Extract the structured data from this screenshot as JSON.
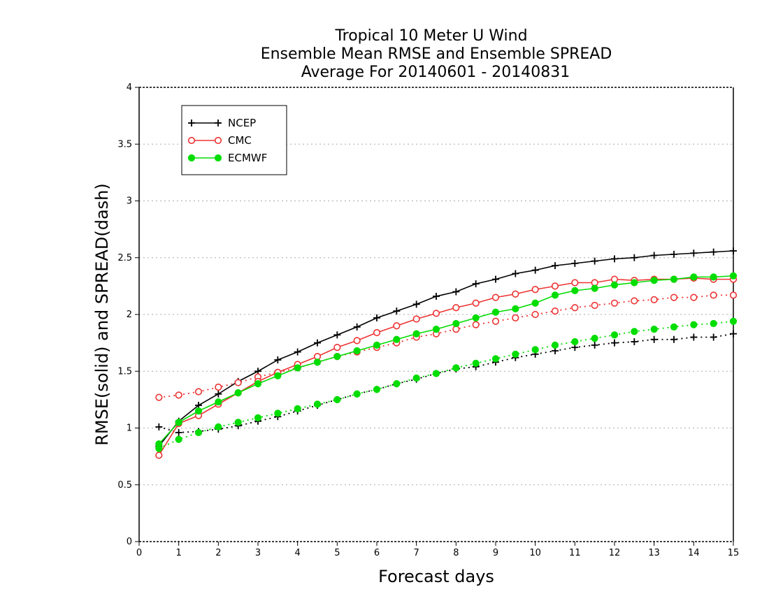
{
  "chart_data": {
    "type": "line",
    "title": [
      "Tropical 10 Meter U Wind",
      "Ensemble Mean RMSE and Ensemble SPREAD",
      "Average For 20140601 - 20140831"
    ],
    "xlabel": "Forecast days",
    "ylabel": "RMSE(solid) and SPREAD(dash)",
    "xlim": [
      0,
      15
    ],
    "ylim": [
      0,
      4
    ],
    "xticks": [
      "0",
      "1",
      "2",
      "3",
      "4",
      "5",
      "6",
      "7",
      "8",
      "9",
      "10",
      "11",
      "12",
      "13",
      "14",
      "15"
    ],
    "yticks": [
      "0",
      "0.5",
      "1",
      "1.5",
      "2",
      "2.5",
      "3",
      "3.5",
      "4"
    ],
    "grid": true,
    "legend_position": "top-left",
    "x": [
      0.5,
      1,
      1.5,
      2,
      2.5,
      3,
      3.5,
      4,
      4.5,
      5,
      5.5,
      6,
      6.5,
      7,
      7.5,
      8,
      8.5,
      9,
      9.5,
      10,
      10.5,
      11,
      11.5,
      12,
      12.5,
      13,
      13.5,
      14,
      14.5,
      15
    ],
    "series": [
      {
        "name": "NCEP",
        "color": "#000000",
        "marker": "plus",
        "rmse": [
          0.84,
          1.06,
          1.2,
          1.3,
          1.41,
          1.5,
          1.6,
          1.67,
          1.75,
          1.82,
          1.89,
          1.97,
          2.03,
          2.09,
          2.16,
          2.2,
          2.27,
          2.31,
          2.36,
          2.39,
          2.43,
          2.45,
          2.47,
          2.49,
          2.5,
          2.52,
          2.53,
          2.54,
          2.55,
          2.56
        ],
        "spread": [
          1.01,
          0.96,
          0.97,
          0.99,
          1.02,
          1.06,
          1.1,
          1.15,
          1.2,
          1.25,
          1.3,
          1.34,
          1.39,
          1.43,
          1.48,
          1.52,
          1.54,
          1.58,
          1.62,
          1.65,
          1.68,
          1.71,
          1.73,
          1.75,
          1.76,
          1.78,
          1.78,
          1.8,
          1.8,
          1.83
        ]
      },
      {
        "name": "CMC",
        "color": "#ee3333",
        "marker": "open-circle",
        "rmse": [
          0.76,
          1.04,
          1.11,
          1.21,
          1.31,
          1.41,
          1.49,
          1.56,
          1.63,
          1.71,
          1.77,
          1.84,
          1.9,
          1.96,
          2.01,
          2.06,
          2.1,
          2.15,
          2.18,
          2.22,
          2.25,
          2.28,
          2.28,
          2.31,
          2.3,
          2.31,
          2.31,
          2.32,
          2.31,
          2.31
        ],
        "spread": [
          1.27,
          1.29,
          1.32,
          1.36,
          1.4,
          1.45,
          1.49,
          1.53,
          1.58,
          1.63,
          1.67,
          1.71,
          1.75,
          1.8,
          1.83,
          1.87,
          1.91,
          1.94,
          1.97,
          2.0,
          2.03,
          2.06,
          2.08,
          2.1,
          2.12,
          2.13,
          2.15,
          2.15,
          2.17,
          2.17
        ]
      },
      {
        "name": "ECMWF",
        "color": "#00dd00",
        "marker": "filled-circle",
        "rmse": [
          0.86,
          1.05,
          1.15,
          1.23,
          1.31,
          1.39,
          1.46,
          1.53,
          1.58,
          1.63,
          1.68,
          1.73,
          1.78,
          1.83,
          1.87,
          1.92,
          1.97,
          2.02,
          2.05,
          2.1,
          2.17,
          2.21,
          2.23,
          2.26,
          2.28,
          2.3,
          2.31,
          2.33,
          2.33,
          2.34
        ],
        "spread": [
          0.82,
          0.9,
          0.96,
          1.01,
          1.05,
          1.09,
          1.13,
          1.17,
          1.21,
          1.25,
          1.3,
          1.34,
          1.39,
          1.44,
          1.48,
          1.53,
          1.57,
          1.61,
          1.65,
          1.69,
          1.73,
          1.76,
          1.79,
          1.82,
          1.85,
          1.87,
          1.89,
          1.91,
          1.92,
          1.94
        ]
      }
    ]
  }
}
